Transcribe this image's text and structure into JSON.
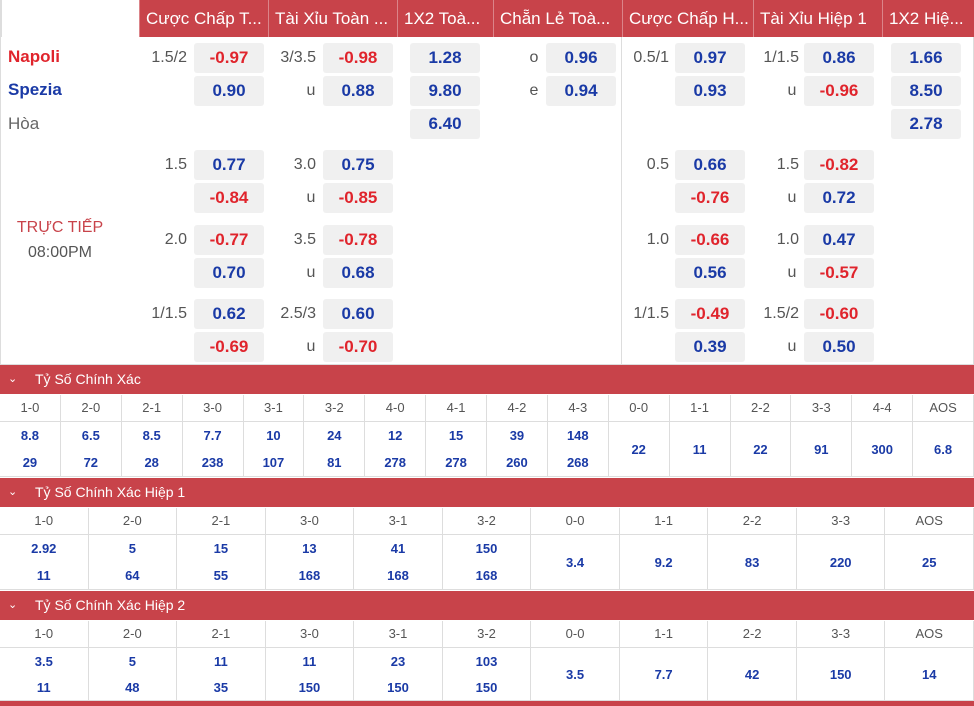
{
  "header": [
    "Cược Chấp T...",
    "Tài Xỉu Toàn ...",
    "1X2 Toà...",
    "Chẵn Lẻ Toà...",
    "Cược Chấp H...",
    "Tài Xỉu Hiệp 1",
    "1X2 Hiệ..."
  ],
  "teams": {
    "home": "Napoli",
    "away": "Spezia",
    "draw": "Hòa"
  },
  "status": {
    "live": "TRỰC TIẾP",
    "time": "08:00PM"
  },
  "main": {
    "ah_full": {
      "line": "1.5/2",
      "home": "-0.97",
      "away": "0.90"
    },
    "ou_full": {
      "line": "3/3.5",
      "over": "-0.98",
      "u": "u",
      "under": "0.88"
    },
    "x12_full": {
      "home": "1.28",
      "away": "9.80",
      "draw": "6.40"
    },
    "oe": {
      "o": "o",
      "odd": "0.96",
      "e": "e",
      "even": "0.94"
    },
    "ah_half": {
      "line": "0.5/1",
      "home": "0.97",
      "away": "0.93"
    },
    "ou_half": {
      "line": "1/1.5",
      "over": "0.86",
      "u": "u",
      "under": "-0.96"
    },
    "x12_half": {
      "home": "1.66",
      "away": "8.50",
      "draw": "2.78"
    }
  },
  "alt": [
    {
      "ah_line": "1.5",
      "ah_h": "0.77",
      "ah_a": "-0.84",
      "ou_line": "3.0",
      "ou_o": "0.75",
      "u": "u",
      "ou_u": "-0.85",
      "hah_line": "0.5",
      "hah_h": "0.66",
      "hah_a": "-0.76",
      "hou_line": "1.5",
      "hou_o": "-0.82",
      "hou_u": "0.72"
    },
    {
      "ah_line": "2.0",
      "ah_h": "-0.77",
      "ah_a": "0.70",
      "ou_line": "3.5",
      "ou_o": "-0.78",
      "u": "u",
      "ou_u": "0.68",
      "hah_line": "1.0",
      "hah_h": "-0.66",
      "hah_a": "0.56",
      "hou_line": "1.0",
      "hou_o": "0.47",
      "hou_u": "-0.57"
    },
    {
      "ah_line": "1/1.5",
      "ah_h": "0.62",
      "ah_a": "-0.69",
      "ou_line": "2.5/3",
      "ou_o": "0.60",
      "u": "u",
      "ou_u": "-0.70",
      "hah_line": "1/1.5",
      "hah_h": "-0.49",
      "hah_a": "0.39",
      "hou_line": "1.5/2",
      "hou_o": "-0.60",
      "hou_u": "0.50"
    }
  ],
  "cs_full": {
    "title": "Tỷ Số Chính Xác",
    "labels": [
      "1-0",
      "2-0",
      "2-1",
      "3-0",
      "3-1",
      "3-2",
      "4-0",
      "4-1",
      "4-2",
      "4-3",
      "0-0",
      "1-1",
      "2-2",
      "3-3",
      "4-4",
      "AOS"
    ],
    "top": [
      "8.8",
      "6.5",
      "8.5",
      "7.7",
      "10",
      "24",
      "12",
      "15",
      "39",
      "148",
      "22",
      "11",
      "22",
      "91",
      "300",
      "6.8"
    ],
    "bottom": [
      "29",
      "72",
      "28",
      "238",
      "107",
      "81",
      "278",
      "278",
      "260",
      "268",
      "",
      "",
      "",
      "",
      "",
      ""
    ]
  },
  "cs_h1": {
    "title": "Tỷ Số Chính Xác Hiệp 1",
    "labels": [
      "1-0",
      "2-0",
      "2-1",
      "3-0",
      "3-1",
      "3-2",
      "0-0",
      "1-1",
      "2-2",
      "3-3",
      "AOS"
    ],
    "top": [
      "2.92",
      "5",
      "15",
      "13",
      "41",
      "150",
      "3.4",
      "9.2",
      "83",
      "220",
      "25"
    ],
    "bottom": [
      "11",
      "64",
      "55",
      "168",
      "168",
      "168",
      "",
      "",
      "",
      "",
      ""
    ]
  },
  "cs_h2": {
    "title": "Tỷ Số Chính Xác Hiệp 2",
    "labels": [
      "1-0",
      "2-0",
      "2-1",
      "3-0",
      "3-1",
      "3-2",
      "0-0",
      "1-1",
      "2-2",
      "3-3",
      "AOS"
    ],
    "top": [
      "3.5",
      "5",
      "11",
      "11",
      "23",
      "103",
      "3.5",
      "7.7",
      "42",
      "150",
      "14"
    ],
    "bottom": [
      "11",
      "48",
      "35",
      "150",
      "150",
      "150",
      "",
      "",
      "",
      "",
      ""
    ]
  },
  "colors": {
    "accent": "#c8434a",
    "positive": "#1a3aa6",
    "negative": "#e0242c"
  },
  "icons": {
    "collapse": "chevron-down-icon"
  }
}
